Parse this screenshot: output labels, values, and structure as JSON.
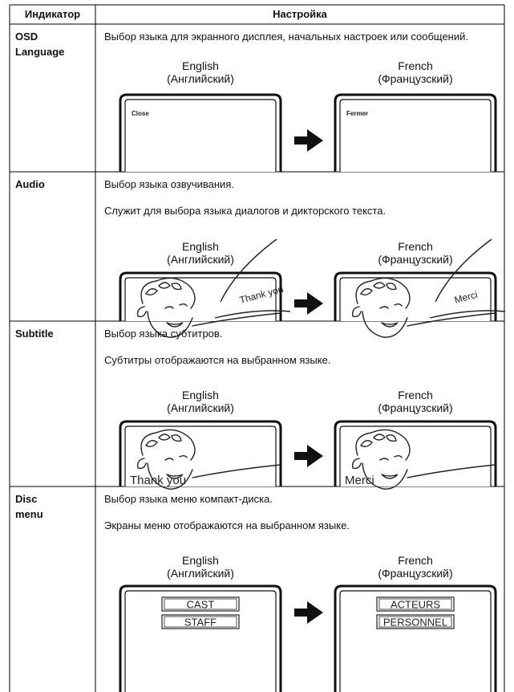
{
  "table": {
    "header": {
      "indicator": "Индикатор",
      "setting": "Настройка"
    },
    "rows": [
      {
        "indicator": "OSD Language",
        "descriptions": [
          "Выбор языка для экранного дисплея, начальных настроек или сообщений."
        ],
        "left": {
          "language": "English",
          "translation": "(Английский)",
          "screen": [
            "Close"
          ]
        },
        "right": {
          "language": "French",
          "translation": "(Французский)",
          "screen": [
            "Fermer"
          ]
        }
      },
      {
        "indicator": "Audio",
        "descriptions": [
          "Выбор языка озвучивания.",
          "Служит для выбора языка диалогов и дикторского текста."
        ],
        "left": {
          "language": "English",
          "translation": "(Английский)",
          "screen": [
            "Thank you"
          ]
        },
        "right": {
          "language": "French",
          "translation": "(Французский)",
          "screen": [
            "Merci"
          ]
        }
      },
      {
        "indicator": "Subtitle",
        "descriptions": [
          "Выбор языка субтитров.",
          "Субтитры отображаются на выбранном языке."
        ],
        "left": {
          "language": "English",
          "translation": "(Английский)",
          "screen": [
            "Thank you"
          ]
        },
        "right": {
          "language": "French",
          "translation": "(Французский)",
          "screen": [
            "Merci"
          ]
        }
      },
      {
        "indicator": "Disc menu",
        "descriptions": [
          "Выбор языка меню компакт-диска.",
          "Экраны меню отображаются на выбранном языке."
        ],
        "left": {
          "language": "English",
          "translation": "(Английский)",
          "screen": [
            "CAST",
            "STAFF"
          ]
        },
        "right": {
          "language": "French",
          "translation": "(Французский)",
          "screen": [
            "ACTEURS",
            "PERSONNEL"
          ]
        }
      }
    ]
  }
}
